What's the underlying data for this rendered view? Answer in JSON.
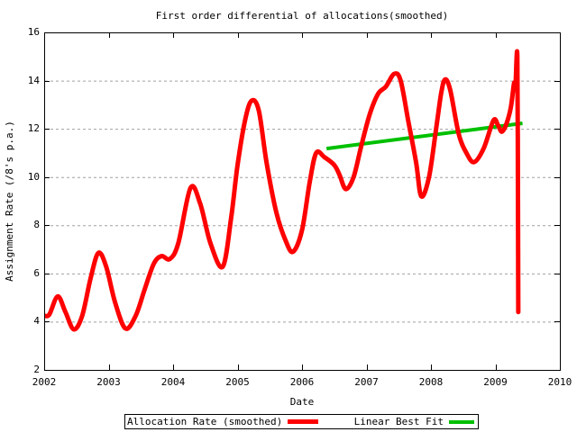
{
  "chart_data": {
    "type": "line",
    "title": "First order differential of allocations(smoothed)",
    "xlabel": "Date",
    "ylabel": "Assignment Rate (/8's p.a.)",
    "xlim": [
      2002,
      2010
    ],
    "ylim": [
      2,
      16
    ],
    "x_ticks": [
      2002,
      2003,
      2004,
      2005,
      2006,
      2007,
      2008,
      2009,
      2010
    ],
    "y_ticks": [
      2,
      4,
      6,
      8,
      10,
      12,
      14,
      16
    ],
    "grid": "horizontal dashed gridlines at y ticks only",
    "legend_position": "boxed, centered below x axis",
    "series": [
      {
        "name": "Allocation Rate (smoothed)",
        "color": "#ff0000",
        "line_width": 5,
        "points": [
          [
            2002.0,
            4.25
          ],
          [
            2002.08,
            4.3
          ],
          [
            2002.21,
            5.05
          ],
          [
            2002.33,
            4.4
          ],
          [
            2002.46,
            3.68
          ],
          [
            2002.59,
            4.25
          ],
          [
            2002.72,
            5.8
          ],
          [
            2002.84,
            6.85
          ],
          [
            2002.96,
            6.3
          ],
          [
            2003.1,
            4.8
          ],
          [
            2003.26,
            3.72
          ],
          [
            2003.42,
            4.25
          ],
          [
            2003.56,
            5.35
          ],
          [
            2003.7,
            6.4
          ],
          [
            2003.82,
            6.72
          ],
          [
            2003.95,
            6.6
          ],
          [
            2004.08,
            7.25
          ],
          [
            2004.27,
            9.55
          ],
          [
            2004.42,
            8.9
          ],
          [
            2004.58,
            7.25
          ],
          [
            2004.77,
            6.28
          ],
          [
            2004.9,
            8.3
          ],
          [
            2005.0,
            10.5
          ],
          [
            2005.12,
            12.4
          ],
          [
            2005.22,
            13.17
          ],
          [
            2005.33,
            12.75
          ],
          [
            2005.45,
            10.6
          ],
          [
            2005.6,
            8.55
          ],
          [
            2005.74,
            7.4
          ],
          [
            2005.86,
            6.9
          ],
          [
            2006.0,
            7.8
          ],
          [
            2006.12,
            9.8
          ],
          [
            2006.22,
            11.0
          ],
          [
            2006.35,
            10.82
          ],
          [
            2006.5,
            10.5
          ],
          [
            2006.58,
            10.1
          ],
          [
            2006.68,
            9.5
          ],
          [
            2006.8,
            10.0
          ],
          [
            2006.92,
            11.3
          ],
          [
            2007.05,
            12.6
          ],
          [
            2007.18,
            13.45
          ],
          [
            2007.3,
            13.75
          ],
          [
            2007.43,
            14.28
          ],
          [
            2007.53,
            14.0
          ],
          [
            2007.65,
            12.3
          ],
          [
            2007.77,
            10.6
          ],
          [
            2007.85,
            9.2
          ],
          [
            2007.97,
            10.0
          ],
          [
            2008.08,
            12.0
          ],
          [
            2008.16,
            13.5
          ],
          [
            2008.22,
            14.05
          ],
          [
            2008.3,
            13.6
          ],
          [
            2008.43,
            11.8
          ],
          [
            2008.55,
            11.0
          ],
          [
            2008.67,
            10.62
          ],
          [
            2008.82,
            11.2
          ],
          [
            2008.97,
            12.35
          ],
          [
            2009.04,
            12.15
          ],
          [
            2009.1,
            11.88
          ],
          [
            2009.17,
            12.2
          ],
          [
            2009.24,
            12.9
          ],
          [
            2009.29,
            13.9
          ],
          [
            2009.31,
            13.7
          ],
          [
            2009.34,
            15.03
          ],
          [
            2009.35,
            9.0
          ],
          [
            2009.355,
            4.4
          ]
        ]
      },
      {
        "name": "Linear Best Fit",
        "color": "#00c000",
        "line_width": 4,
        "points": [
          [
            2006.38,
            11.18
          ],
          [
            2009.42,
            12.23
          ]
        ]
      }
    ]
  },
  "legend": {
    "items": [
      {
        "label": "Allocation Rate (smoothed)",
        "color": "#ff0000"
      },
      {
        "label": "Linear Best Fit",
        "color": "#00c000"
      }
    ]
  },
  "colors": {
    "background": "#ffffff",
    "axis": "#000000",
    "grid": "#a0a0a0",
    "series_red": "#ff0000",
    "series_green": "#00c000",
    "text": "#000000"
  }
}
